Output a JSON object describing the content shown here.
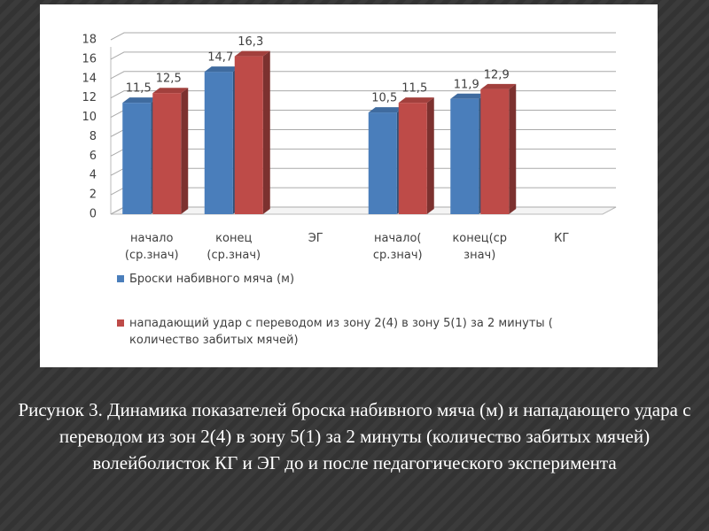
{
  "chart_data": {
    "type": "bar3d",
    "categories": [
      "начало (ср.знач)",
      "конец (ср.знач)",
      "ЭГ",
      "начало( ср.знач)",
      "конец(ср знач)",
      "КГ"
    ],
    "series": [
      {
        "name": "Броски набивного мяча (м)",
        "color": "#4a7ebb",
        "values": [
          11.5,
          14.7,
          null,
          10.5,
          11.9,
          null
        ],
        "value_labels": [
          "11,5",
          "14,7",
          null,
          "10,5",
          "11,9",
          null
        ]
      },
      {
        "name": "нападающий удар с переводом из зону 2(4) в зону 5(1) за 2 минуты ( количество забитых мячей)",
        "color": "#be4b48",
        "values": [
          12.5,
          16.3,
          null,
          11.5,
          12.9,
          null
        ],
        "value_labels": [
          "12,5",
          "16,3",
          null,
          "11,5",
          "12,9",
          null
        ]
      }
    ],
    "ylim": [
      0,
      18
    ],
    "yticks": [
      0,
      2,
      4,
      6,
      8,
      10,
      12,
      14,
      16,
      18
    ],
    "grid": true,
    "legend": "bottom"
  },
  "caption": "Рисунок 3. Динамика показателей броска набивного мяча (м) и нападающего удара с переводом из зон 2(4) в зону 5(1) за 2 минуты (количество забитых мячей) волейболисток КГ и ЭГ до и после педагогического эксперимента"
}
